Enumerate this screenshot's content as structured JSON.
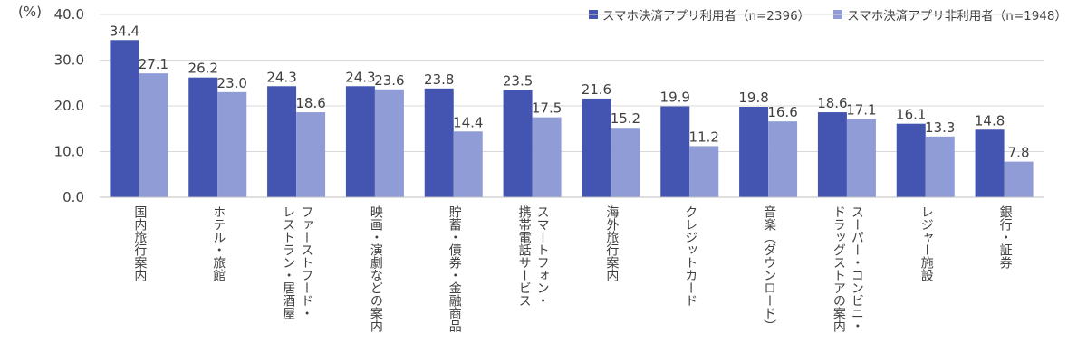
{
  "chart_data": {
    "type": "bar",
    "unit_label": "(%)",
    "title": "",
    "xlabel": "",
    "ylabel": "",
    "ylim": [
      0,
      40
    ],
    "yticks": [
      "0.0",
      "10.0",
      "20.0",
      "30.0",
      "40.0"
    ],
    "grid": true,
    "legend_position": "top-right",
    "categories": [
      "国内旅行案内",
      "ホテル・旅館",
      "ファーストフード・\nレストラン・居酒屋",
      "映画・演劇などの案内",
      "貯蓄・債券・金融商品",
      "スマートフォン・\n携帯電話サービス",
      "海外旅行案内",
      "クレジットカード",
      "音楽（ダウンロード）",
      "スーパー・コンビニ・\nドラッグストアの案内",
      "レジャー施設",
      "銀行・証券"
    ],
    "series": [
      {
        "name": "スマホ決済アプリ利用者（n=2396）",
        "color": "#4355b1",
        "values": [
          34.4,
          26.2,
          24.3,
          24.3,
          23.8,
          23.5,
          21.6,
          19.9,
          19.8,
          18.6,
          16.1,
          14.8
        ],
        "labels": [
          "34.4",
          "26.2",
          "24.3",
          "24.3",
          "23.8",
          "23.5",
          "21.6",
          "19.9",
          "19.8",
          "18.6",
          "16.1",
          "14.8"
        ]
      },
      {
        "name": "スマホ決済アプリ非利用者（n=1948）",
        "color": "#8f9cd6",
        "values": [
          27.1,
          23.0,
          18.6,
          23.6,
          14.4,
          17.5,
          15.2,
          11.2,
          16.6,
          17.1,
          13.3,
          7.8
        ],
        "labels": [
          "27.1",
          "23.0",
          "18.6",
          "23.6",
          "14.4",
          "17.5",
          "15.2",
          "11.2",
          "16.6",
          "17.1",
          "13.3",
          "7.8"
        ]
      }
    ]
  }
}
